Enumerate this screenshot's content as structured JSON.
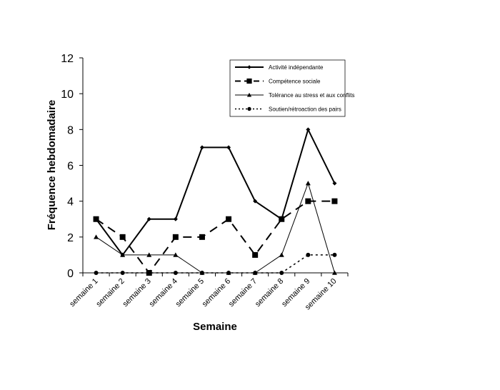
{
  "chart_data": {
    "type": "line",
    "categories": [
      "semaine 1",
      "semaine 2",
      "semaine 3",
      "semaine 4",
      "semaine 5",
      "semaine 6",
      "semaine 7",
      "semaine 8",
      "semaine 9",
      "semaine 10"
    ],
    "xlabel": "Semaine",
    "ylabel": "Fréquence hebdomadaire",
    "ylim": [
      0,
      12
    ],
    "yticks": [
      0,
      2,
      4,
      6,
      8,
      10,
      12
    ],
    "grid": false,
    "legend_position": "top-right",
    "series": [
      {
        "name": "Activité indépendante",
        "values": [
          3,
          1,
          3,
          3,
          7,
          7,
          4,
          3,
          8,
          5
        ],
        "color": "#000000",
        "marker": "diamond",
        "dash": "solid",
        "weight": "heavy"
      },
      {
        "name": "Compétence sociale",
        "values": [
          3,
          2,
          0,
          2,
          2,
          3,
          1,
          3,
          4,
          4
        ],
        "color": "#000000",
        "marker": "square",
        "dash": "dashed",
        "weight": "heavy"
      },
      {
        "name": "Tolérance au stress et aux conflits",
        "values": [
          2,
          1,
          1,
          1,
          0,
          0,
          0,
          1,
          5,
          0
        ],
        "color": "#000000",
        "marker": "triangle",
        "dash": "solid",
        "weight": "thin"
      },
      {
        "name": "Soutien/rétroaction des pairs",
        "values": [
          0,
          0,
          0,
          0,
          0,
          0,
          0,
          0,
          1,
          1
        ],
        "color": "#000000",
        "marker": "circle",
        "dash": "dotted",
        "weight": "medium"
      }
    ]
  }
}
